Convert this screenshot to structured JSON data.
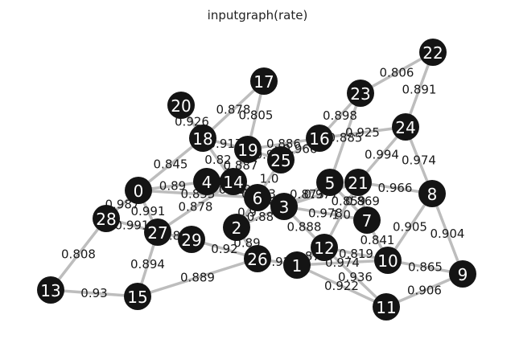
{
  "title": "inputgraph(rate)",
  "colors": {
    "node": "#141414",
    "node_text": "#ffffff",
    "edge": "#bdbdbd",
    "label": "#1a1a1a"
  },
  "nodes": [
    {
      "id": "0"
    },
    {
      "id": "1"
    },
    {
      "id": "2"
    },
    {
      "id": "3"
    },
    {
      "id": "4"
    },
    {
      "id": "5"
    },
    {
      "id": "6"
    },
    {
      "id": "7"
    },
    {
      "id": "8"
    },
    {
      "id": "9"
    },
    {
      "id": "10"
    },
    {
      "id": "11"
    },
    {
      "id": "12"
    },
    {
      "id": "13"
    },
    {
      "id": "14"
    },
    {
      "id": "15"
    },
    {
      "id": "16"
    },
    {
      "id": "17"
    },
    {
      "id": "18"
    },
    {
      "id": "19"
    },
    {
      "id": "20"
    },
    {
      "id": "21"
    },
    {
      "id": "22"
    },
    {
      "id": "23"
    },
    {
      "id": "24"
    },
    {
      "id": "25"
    },
    {
      "id": "26"
    },
    {
      "id": "27"
    },
    {
      "id": "28"
    },
    {
      "id": "29"
    }
  ],
  "edges": [
    {
      "source": "22",
      "target": "23",
      "label": "0.806"
    },
    {
      "source": "22",
      "target": "24",
      "label": "0.891"
    },
    {
      "source": "24",
      "target": "8",
      "label": "0.974"
    },
    {
      "source": "24",
      "target": "21",
      "label": "0.994"
    },
    {
      "source": "24",
      "target": "16",
      "label": "0.925"
    },
    {
      "source": "8",
      "target": "21",
      "label": "0.966"
    },
    {
      "source": "8",
      "target": "10",
      "label": "0.905"
    },
    {
      "source": "8",
      "target": "9",
      "label": "0.904"
    },
    {
      "source": "9",
      "target": "10",
      "label": "0.865"
    },
    {
      "source": "9",
      "target": "11",
      "label": "0.906"
    },
    {
      "source": "11",
      "target": "12",
      "label": "0.936"
    },
    {
      "source": "11",
      "target": "1",
      "label": "0.922"
    },
    {
      "source": "10",
      "target": "12",
      "label": "0.819"
    },
    {
      "source": "10",
      "target": "7",
      "label": "0.841"
    },
    {
      "source": "10",
      "target": "1",
      "label": "0.974"
    },
    {
      "source": "23",
      "target": "16",
      "label": "0.898"
    },
    {
      "source": "23",
      "target": "5",
      "label": "0.885"
    },
    {
      "source": "16",
      "target": "25",
      "label": "0.966"
    },
    {
      "source": "16",
      "target": "19",
      "label": "0.886"
    },
    {
      "source": "17",
      "target": "18",
      "label": "0.878"
    },
    {
      "source": "17",
      "target": "19",
      "label": "0.805"
    },
    {
      "source": "20",
      "target": "18",
      "label": "0.926"
    },
    {
      "source": "18",
      "target": "19",
      "label": "0.917"
    },
    {
      "source": "18",
      "target": "14",
      "label": "0.82"
    },
    {
      "source": "18",
      "target": "0",
      "label": "0.845"
    },
    {
      "source": "19",
      "target": "14",
      "label": "0.887"
    },
    {
      "source": "19",
      "target": "25",
      "label": "0.9"
    },
    {
      "source": "25",
      "target": "6",
      "label": "1.0"
    },
    {
      "source": "4",
      "target": "14",
      "label": "0.91"
    },
    {
      "source": "0",
      "target": "4",
      "label": "0.89"
    },
    {
      "source": "0",
      "target": "28",
      "label": "0.987"
    },
    {
      "source": "0",
      "target": "6",
      "label": "0.855"
    },
    {
      "source": "0",
      "target": "27",
      "label": "0.991"
    },
    {
      "source": "28",
      "target": "27",
      "label": "0.991"
    },
    {
      "source": "28",
      "target": "13",
      "label": "0.808"
    },
    {
      "source": "13",
      "target": "15",
      "label": "0.93"
    },
    {
      "source": "15",
      "target": "27",
      "label": "0.894"
    },
    {
      "source": "15",
      "target": "26",
      "label": "0.889"
    },
    {
      "source": "27",
      "target": "14",
      "label": "0.878"
    },
    {
      "source": "27",
      "target": "29",
      "label": "0.89"
    },
    {
      "source": "14",
      "target": "6",
      "label": "0.94"
    },
    {
      "source": "14",
      "target": "3",
      "label": "0.873"
    },
    {
      "source": "6",
      "target": "3",
      "label": "0.88"
    },
    {
      "source": "6",
      "target": "2",
      "label": "0.9"
    },
    {
      "source": "3",
      "target": "5",
      "label": "0.873"
    },
    {
      "source": "3",
      "target": "7",
      "label": "0.978"
    },
    {
      "source": "3",
      "target": "12",
      "label": "0.888"
    },
    {
      "source": "3",
      "target": "2",
      "label": "0.88"
    },
    {
      "source": "5",
      "target": "7",
      "label": "0.859"
    },
    {
      "source": "21",
      "target": "3",
      "label": "0.977"
    },
    {
      "source": "21",
      "target": "7",
      "label": "0.869"
    },
    {
      "source": "21",
      "target": "12",
      "label": "1.0"
    },
    {
      "source": "2",
      "target": "26",
      "label": "0.89"
    },
    {
      "source": "29",
      "target": "26",
      "label": "0.92"
    },
    {
      "source": "26",
      "target": "1",
      "label": "0.92"
    },
    {
      "source": "12",
      "target": "1",
      "label": "0.874"
    },
    {
      "source": "4",
      "target": "6",
      "label": "0.95"
    }
  ]
}
